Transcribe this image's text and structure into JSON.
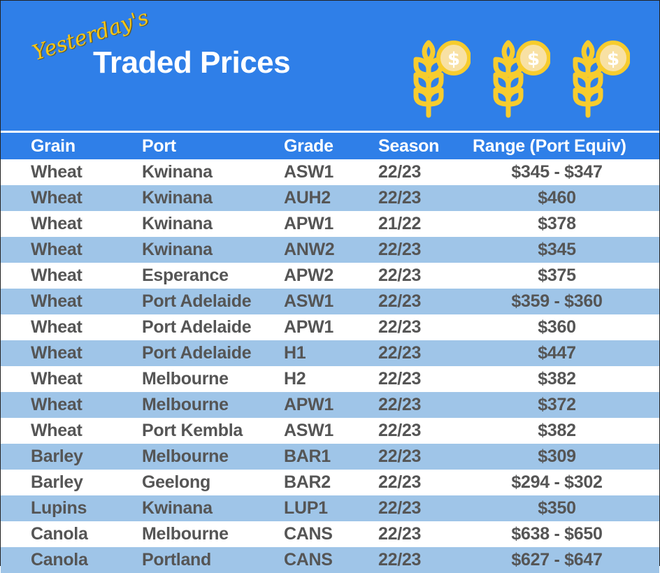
{
  "banner": {
    "subtitle": "Yesterday's",
    "title": "Traded Prices",
    "icons": [
      "wheat-dollar-icon",
      "wheat-dollar-icon",
      "wheat-dollar-icon"
    ],
    "colors": {
      "background": "#2f7fe8",
      "icon_yellow": "#f7cc2e",
      "coin_inner": "#f8e1a4",
      "title_text": "#ffffff",
      "subtitle_text": "#f5c518"
    }
  },
  "table": {
    "colors": {
      "header_bg": "#2f7fe8",
      "alt_row_bg": "#9fc5e8",
      "row_bg": "#ffffff",
      "text": "#555555"
    },
    "headers": [
      "Grain",
      "Port",
      "Grade",
      "Season",
      "Range (Port Equiv)"
    ],
    "rows": [
      [
        "Wheat",
        "Kwinana",
        "ASW1",
        "22/23",
        "$345 - $347"
      ],
      [
        "Wheat",
        "Kwinana",
        "AUH2",
        "22/23",
        "$460"
      ],
      [
        "Wheat",
        "Kwinana",
        "APW1",
        "21/22",
        "$378"
      ],
      [
        "Wheat",
        "Kwinana",
        "ANW2",
        "22/23",
        "$345"
      ],
      [
        "Wheat",
        "Esperance",
        "APW2",
        "22/23",
        "$375"
      ],
      [
        "Wheat",
        "Port Adelaide",
        "ASW1",
        "22/23",
        "$359 - $360"
      ],
      [
        "Wheat",
        "Port Adelaide",
        "APW1",
        "22/23",
        "$360"
      ],
      [
        "Wheat",
        "Port Adelaide",
        "H1",
        "22/23",
        "$447"
      ],
      [
        "Wheat",
        "Melbourne",
        "H2",
        "22/23",
        "$382"
      ],
      [
        "Wheat",
        "Melbourne",
        "APW1",
        "22/23",
        "$372"
      ],
      [
        "Wheat",
        "Port Kembla",
        "ASW1",
        "22/23",
        "$382"
      ],
      [
        "Barley",
        "Melbourne",
        "BAR1",
        "22/23",
        "$309"
      ],
      [
        "Barley",
        "Geelong",
        "BAR2",
        "22/23",
        "$294 - $302"
      ],
      [
        "Lupins",
        "Kwinana",
        "LUP1",
        "22/23",
        "$350"
      ],
      [
        "Canola",
        "Melbourne",
        "CANS",
        "22/23",
        "$638 - $650"
      ],
      [
        "Canola",
        "Portland",
        "CANS",
        "22/23",
        "$627 - $647"
      ]
    ]
  }
}
